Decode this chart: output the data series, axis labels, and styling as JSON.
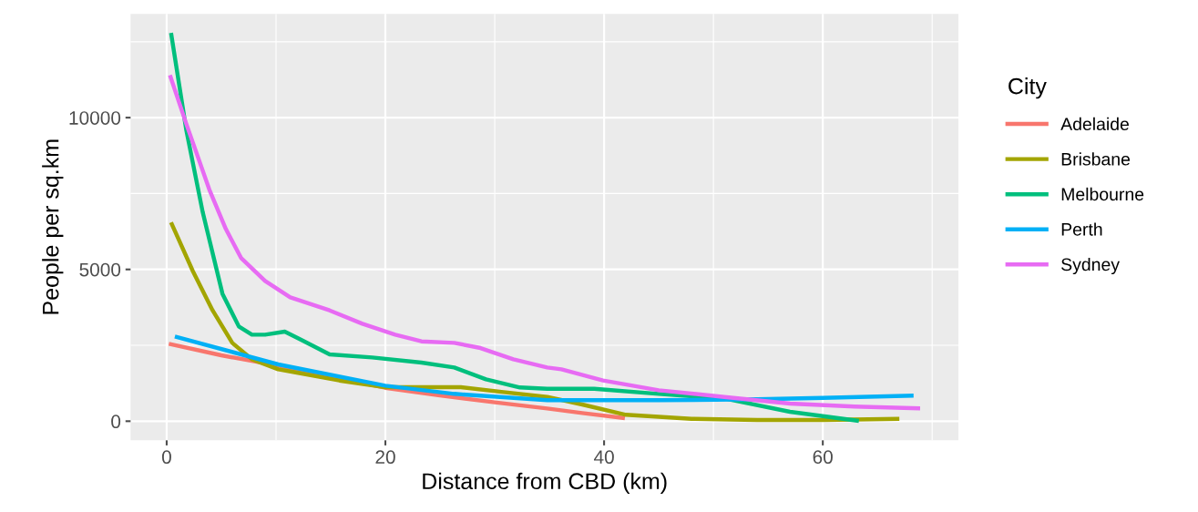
{
  "chart_data": {
    "type": "line",
    "xlabel": "Distance from CBD (km)",
    "ylabel": "People per sq.km",
    "legend_title": "City",
    "legend": "right",
    "grid": true,
    "xlim": [
      -3.3,
      72.4
    ],
    "xticks": [
      0,
      20,
      40,
      60
    ],
    "ylim": [
      -630,
      13420
    ],
    "yticks": [
      0,
      5000,
      10000
    ],
    "series": [
      {
        "name": "Adelaide",
        "color": "#f8766d",
        "x": [
          0.2,
          5,
          10.2,
          15,
          20,
          25,
          30,
          34.8,
          38,
          41.9
        ],
        "values": [
          2550,
          2170,
          1830,
          null,
          1100,
          850,
          620,
          420,
          270,
          100
        ]
      },
      {
        "name": "Brisbane",
        "color": "#a3a500",
        "x": [
          0.4,
          2.4,
          4.2,
          6.0,
          7.8,
          10.2,
          11.9,
          15.8,
          20,
          23.3,
          26.9,
          30.8,
          34.8,
          38,
          42,
          48,
          54,
          60,
          67
        ],
        "values": [
          6550,
          4940,
          3650,
          2580,
          2040,
          1710,
          1600,
          1340,
          1120,
          1120,
          1120,
          960,
          800,
          550,
          210,
          80,
          40,
          40,
          80
        ]
      },
      {
        "name": "Melbourne",
        "color": "#00bf7d",
        "x": [
          0.4,
          1.8,
          3.3,
          5.1,
          6.6,
          7.8,
          9.0,
          10.8,
          12.3,
          14.9,
          18.8,
          23.3,
          26.3,
          29.2,
          32.3,
          34.8,
          39.1,
          45,
          51,
          57,
          63.3
        ],
        "values": [
          12790,
          9580,
          6880,
          4200,
          3120,
          2850,
          2850,
          2950,
          2680,
          2200,
          2100,
          1930,
          1770,
          1380,
          1110,
          1070,
          1070,
          900,
          750,
          310,
          10
        ]
      },
      {
        "name": "Perth",
        "color": "#00b0f6",
        "x": [
          0.75,
          10.2,
          20,
          26.3,
          34.8,
          45,
          54,
          60,
          68.3
        ],
        "values": [
          2790,
          1870,
          1170,
          900,
          690,
          690,
          720,
          770,
          840
        ]
      },
      {
        "name": "Sydney",
        "color": "#e76bf3",
        "x": [
          0.3,
          1.8,
          3.9,
          5.4,
          6.8,
          9.0,
          11.3,
          14.9,
          17.9,
          20.9,
          23.3,
          26.3,
          28.7,
          31.7,
          34.8,
          36.1,
          39.9,
          45,
          51,
          57,
          62.9,
          68.9
        ],
        "values": [
          11400,
          9790,
          7630,
          6340,
          5380,
          4620,
          4080,
          3650,
          3210,
          2850,
          2630,
          2580,
          2410,
          2040,
          1770,
          1710,
          1340,
          1020,
          800,
          580,
          480,
          420
        ]
      }
    ]
  }
}
